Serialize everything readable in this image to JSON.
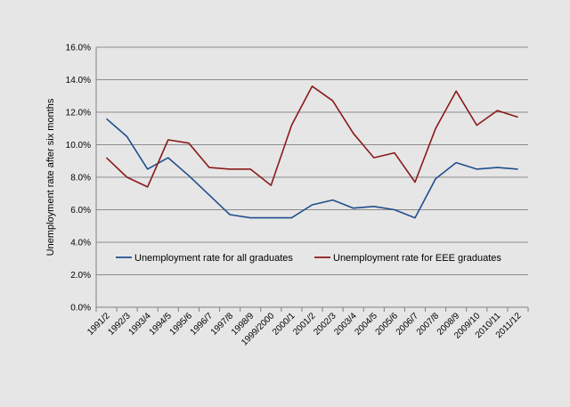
{
  "chart_data": {
    "type": "line",
    "title": "",
    "xlabel": "",
    "ylabel": "Unemployment rate after six months",
    "ylim": [
      0,
      16
    ],
    "y_ticks": [
      "0.0%",
      "2.0%",
      "4.0%",
      "6.0%",
      "8.0%",
      "10.0%",
      "12.0%",
      "14.0%",
      "16.0%"
    ],
    "grid": "horizontal",
    "legend_position": "inside-center",
    "categories": [
      "1991/2",
      "1992/3",
      "1993/4",
      "1994/5",
      "1995/6",
      "1996/7",
      "1997/8",
      "1998/9",
      "1999/2000",
      "2000/1",
      "2001/2",
      "2002/3",
      "2003/4",
      "2004/5",
      "2005/6",
      "2006/7",
      "2007/8",
      "2008/9",
      "2009/10",
      "2010/11",
      "2011/12"
    ],
    "series": [
      {
        "name": "Unemployment rate for all graduates",
        "color": "#1f4e8c",
        "values": [
          11.6,
          10.5,
          8.5,
          9.2,
          8.1,
          6.9,
          5.7,
          5.5,
          5.5,
          5.5,
          6.3,
          6.6,
          6.1,
          6.2,
          6.0,
          5.5,
          7.9,
          8.9,
          8.5,
          8.6,
          8.5
        ]
      },
      {
        "name": "Unemployment rate for EEE graduates",
        "color": "#8b1a1a",
        "values": [
          9.2,
          8.0,
          7.4,
          10.3,
          10.1,
          8.6,
          8.5,
          8.5,
          7.5,
          11.2,
          13.6,
          12.7,
          10.7,
          9.2,
          9.5,
          7.7,
          11.0,
          13.3,
          11.2,
          12.1,
          11.7
        ]
      }
    ]
  }
}
